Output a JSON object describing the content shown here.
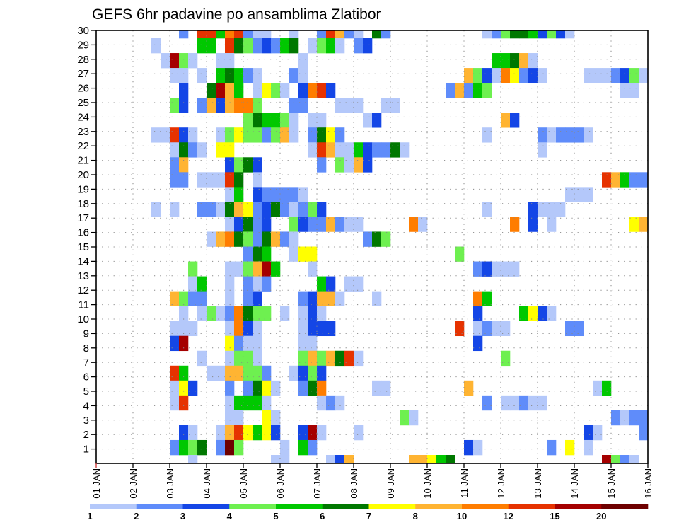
{
  "chart_data": {
    "type": "heatmap",
    "title": "GEFS 6hr padavine po ansamblima Zlatibor",
    "xlabel": "",
    "ylabel": "",
    "x_tick_labels": [
      "01 JAN",
      "02 JAN",
      "03 JAN",
      "04 JAN",
      "05 JAN",
      "06 JAN",
      "07 JAN",
      "08 JAN",
      "09 JAN",
      "10 JAN",
      "11 JAN",
      "12 JAN",
      "13 JAN",
      "14 JAN",
      "15 JAN",
      "16 JAN"
    ],
    "y_tick_labels": [
      "1",
      "2",
      "3",
      "4",
      "5",
      "6",
      "7",
      "8",
      "9",
      "10",
      "11",
      "12",
      "13",
      "14",
      "15",
      "16",
      "17",
      "18",
      "19",
      "20",
      "21",
      "22",
      "23",
      "24",
      "25",
      "26",
      "27",
      "28",
      "29",
      "30"
    ],
    "ylim": [
      0,
      30
    ],
    "time_step": "6hr",
    "columns_count": 60,
    "colorbar_labels": [
      "1",
      "2",
      "3",
      "4",
      "5",
      "6",
      "7",
      "8",
      "10",
      "12",
      "15",
      "20"
    ],
    "colors": [
      "#b4c8fa",
      "#5f8cfa",
      "#1446e6",
      "#6ef050",
      "#00c800",
      "#007800",
      "#ffff00",
      "#ffb432",
      "#ff7d00",
      "#e63200",
      "#a50000",
      "#6e0000"
    ],
    "code_key": {
      "a": "1-2",
      "b": "2-3",
      "c": "3-4",
      "d": "4-5",
      "e": "5-6",
      "f": "6-7",
      "g": "7-8",
      "h": "8-10",
      "i": "10-12",
      "j": "12-15",
      "k": "15-20",
      "l": ">20",
      ".": "<1"
    },
    "rows_top_to_bottom": [
      ".........b.jjeijbaa..a..bjhba.fb..........abdffecdca........",
      "......a....ee.jfdbcbef.adea.bc..............................",
      ".......akda..aa.......a....................eefha............",
      "........aa.a.efeba...ba.................hdcaigbca....aaabcda",
      ".........c..fkhe.agda.cijc............bhbed..............aa.",
      "........dc.bhchiid...bb...aaa..aa...........................",
      "................dfeeda.aa....ac.............hc..............",
      "......aajca..adgddbdha.bfgb...............a.....babbba......",
      "........afba.gg........ajhaaecbbfa..............a...........",
      "........bh....cdfc......b.dahc..............................",
      "........bb.aaajf.a.....................................jhebb",
      "..............ae.cbbbba............................aaa......",
      "......a.a..bbafhgbcfbabdc.................a....caaa.........",
      "..............acfbc..dcbbhbaa.....ia.........i.c.a........gh",
      "............ahifdbfhba.......bfd............................",
      "................bfe..agg...............d....................",
      "..........d...aadhke...a.................bcaaa..............",
      "..........ae..a.bab.....ec.aa...............................",
      "........hdbb..a.bc....bchha...a..........ie.................",
      ".........a.adabifdd.a.aca................c....egca..........",
      "........aaa...aica....accc.............j.abaa......bb.......",
      "........ck....gbaa....aa.................c..................",
      "...........a..adda....dhdhfja...............d...............",
      "........je..aahhddb..acdc...................................",
      "........agc...b.bfga..bfi.....aa........h.............ae....",
      "........aj....aeeea.....aba...............b.aabaa...........",
      "..............aa..ga.............da.....................babb",
      ".........ca..ahjgegc..cka...a........................ca....b",
      "........bedf.bld....a.eb................ca.......b.g.a......",
      "..........a........aa....ach......hhgef................kdba."
    ]
  }
}
